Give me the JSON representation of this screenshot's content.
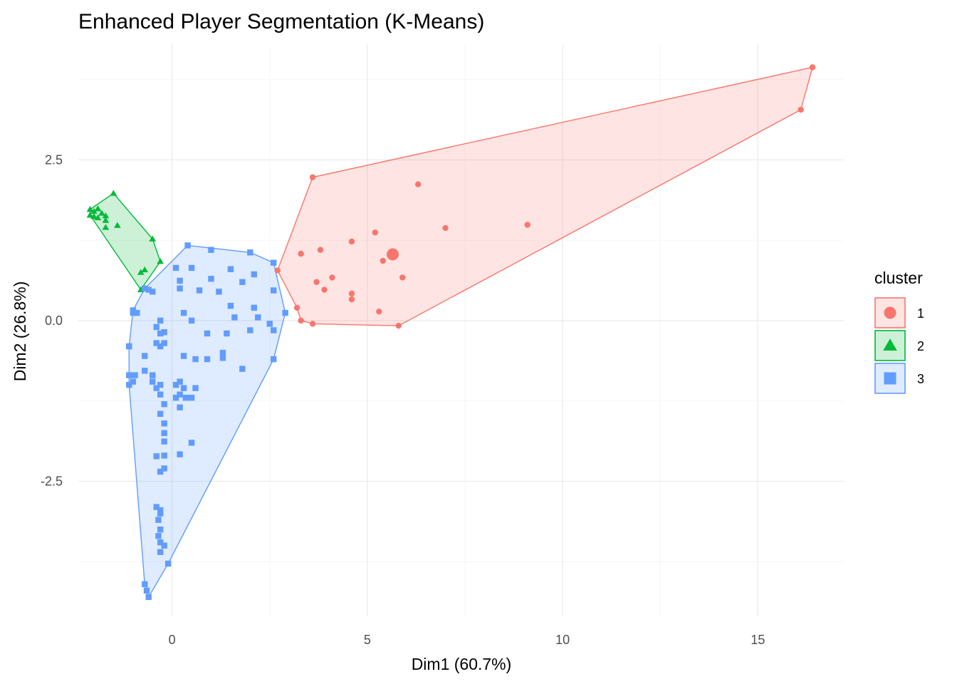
{
  "chart_data": {
    "type": "scatter",
    "title": "Enhanced Player Segmentation (K-Means)",
    "xlabel": "Dim1 (60.7%)",
    "ylabel": "Dim2 (26.8%)",
    "xlim": [
      -2.4,
      17.2
    ],
    "ylim": [
      -4.6,
      4.3
    ],
    "x_ticks": [
      0,
      5,
      10,
      15
    ],
    "x_tick_labels": [
      "0",
      "5",
      "10",
      "15"
    ],
    "y_ticks": [
      2.5,
      0.0,
      -2.5
    ],
    "y_tick_labels": [
      "2.5",
      "0.0",
      "-2.5"
    ],
    "grid": true,
    "legend": {
      "title": "cluster",
      "position": "right"
    },
    "series": [
      {
        "name": "1",
        "shape": "circle",
        "color": "#F8766D",
        "fill": "#F8766D",
        "hull": [
          [
            2.7,
            0.78
          ],
          [
            3.6,
            2.23
          ],
          [
            16.4,
            3.94
          ],
          [
            16.1,
            3.28
          ],
          [
            5.8,
            -0.08
          ],
          [
            3.6,
            -0.05
          ],
          [
            3.3,
            0.0
          ],
          [
            3.2,
            0.2
          ]
        ],
        "centroid": [
          5.65,
          1.03
        ],
        "points": [
          [
            2.7,
            0.78
          ],
          [
            3.6,
            2.23
          ],
          [
            16.4,
            3.94
          ],
          [
            16.1,
            3.28
          ],
          [
            5.8,
            -0.08
          ],
          [
            3.6,
            -0.05
          ],
          [
            3.2,
            0.2
          ],
          [
            3.3,
            0.0
          ],
          [
            6.3,
            2.12
          ],
          [
            3.3,
            1.04
          ],
          [
            3.8,
            1.1
          ],
          [
            4.6,
            1.23
          ],
          [
            5.2,
            1.37
          ],
          [
            7.0,
            1.44
          ],
          [
            9.1,
            1.49
          ],
          [
            5.4,
            0.93
          ],
          [
            5.9,
            0.67
          ],
          [
            4.1,
            0.67
          ],
          [
            3.7,
            0.6
          ],
          [
            3.9,
            0.48
          ],
          [
            4.6,
            0.42
          ],
          [
            4.6,
            0.33
          ],
          [
            5.3,
            0.14
          ]
        ]
      },
      {
        "name": "2",
        "shape": "triangle",
        "color": "#00BA38",
        "fill": "#00BA38",
        "hull": [
          [
            -2.1,
            1.73
          ],
          [
            -1.5,
            1.98
          ],
          [
            -0.5,
            1.27
          ],
          [
            -0.3,
            0.92
          ],
          [
            -0.8,
            0.48
          ],
          [
            -2.1,
            1.64
          ]
        ],
        "points": [
          [
            -2.1,
            1.73
          ],
          [
            -1.5,
            1.98
          ],
          [
            -0.5,
            1.27
          ],
          [
            -0.3,
            0.92
          ],
          [
            -0.8,
            0.48
          ],
          [
            -2.1,
            1.64
          ],
          [
            -2.0,
            1.7
          ],
          [
            -1.9,
            1.74
          ],
          [
            -1.8,
            1.67
          ],
          [
            -2.0,
            1.62
          ],
          [
            -1.7,
            1.56
          ],
          [
            -1.9,
            1.6
          ],
          [
            -1.7,
            1.45
          ],
          [
            -1.4,
            1.48
          ],
          [
            -1.7,
            1.63
          ],
          [
            -0.7,
            0.79
          ],
          [
            -0.8,
            0.75
          ]
        ]
      },
      {
        "name": "3",
        "shape": "square",
        "color": "#619CFF",
        "fill": "#619CFF",
        "hull": [
          [
            0.4,
            1.17
          ],
          [
            2.0,
            1.06
          ],
          [
            2.6,
            0.9
          ],
          [
            2.9,
            0.12
          ],
          [
            2.6,
            -0.6
          ],
          [
            -0.1,
            -3.78
          ],
          [
            -0.6,
            -4.3
          ],
          [
            -0.7,
            -4.1
          ],
          [
            -1.1,
            -1.0
          ],
          [
            -1.1,
            -0.4
          ],
          [
            -1.0,
            0.16
          ],
          [
            -0.7,
            0.5
          ]
        ],
        "points": [
          [
            0.4,
            1.17
          ],
          [
            1.0,
            1.1
          ],
          [
            2.0,
            1.06
          ],
          [
            2.6,
            0.9
          ],
          [
            2.9,
            0.12
          ],
          [
            2.6,
            -0.6
          ],
          [
            -0.1,
            -3.78
          ],
          [
            -0.6,
            -4.3
          ],
          [
            -0.7,
            -4.1
          ],
          [
            -0.65,
            -4.2
          ],
          [
            -1.0,
            0.16
          ],
          [
            -0.7,
            0.5
          ],
          [
            -1.1,
            -0.4
          ],
          [
            0.1,
            0.82
          ],
          [
            0.5,
            0.82
          ],
          [
            0.2,
            0.62
          ],
          [
            -0.6,
            0.48
          ],
          [
            0.2,
            0.5
          ],
          [
            0.7,
            0.47
          ],
          [
            -0.5,
            0.45
          ],
          [
            1.0,
            0.65
          ],
          [
            1.2,
            0.45
          ],
          [
            1.5,
            0.8
          ],
          [
            1.8,
            0.6
          ],
          [
            2.1,
            0.72
          ],
          [
            2.6,
            0.47
          ],
          [
            1.5,
            0.23
          ],
          [
            1.6,
            0.05
          ],
          [
            1.4,
            -0.2
          ],
          [
            2.1,
            0.2
          ],
          [
            2.2,
            0.05
          ],
          [
            2.0,
            -0.15
          ],
          [
            2.5,
            -0.05
          ],
          [
            2.6,
            -0.15
          ],
          [
            0.3,
            0.12
          ],
          [
            0.5,
            0.0
          ],
          [
            0.9,
            -0.2
          ],
          [
            -1.0,
            0.12
          ],
          [
            -0.9,
            0.12
          ],
          [
            -0.3,
            0.0
          ],
          [
            -0.2,
            -0.18
          ],
          [
            -0.3,
            -0.2
          ],
          [
            -0.4,
            -0.1
          ],
          [
            -0.2,
            -0.35
          ],
          [
            -0.3,
            -0.4
          ],
          [
            -0.4,
            -0.35
          ],
          [
            -1.1,
            -0.4
          ],
          [
            -0.7,
            -0.55
          ],
          [
            0.3,
            -0.55
          ],
          [
            0.6,
            -0.6
          ],
          [
            0.9,
            -0.6
          ],
          [
            1.3,
            -0.58
          ],
          [
            1.3,
            -0.5
          ],
          [
            1.8,
            -0.75
          ],
          [
            -1.1,
            -0.85
          ],
          [
            -1.0,
            -0.95
          ],
          [
            -1.1,
            -1.0
          ],
          [
            -0.95,
            -0.85
          ],
          [
            -0.7,
            -0.78
          ],
          [
            -0.5,
            -0.95
          ],
          [
            -0.4,
            -1.05
          ],
          [
            -0.5,
            -0.85
          ],
          [
            -0.3,
            -1.0
          ],
          [
            -0.3,
            -1.15
          ],
          [
            -0.2,
            -1.3
          ],
          [
            -0.3,
            -1.45
          ],
          [
            -0.2,
            -1.6
          ],
          [
            -0.2,
            -1.75
          ],
          [
            -0.2,
            -1.88
          ],
          [
            -0.2,
            -2.1
          ],
          [
            0.1,
            -1.0
          ],
          [
            0.2,
            -0.95
          ],
          [
            0.3,
            -1.05
          ],
          [
            0.2,
            -1.15
          ],
          [
            0.1,
            -1.2
          ],
          [
            0.35,
            -1.2
          ],
          [
            0.2,
            -1.35
          ],
          [
            0.6,
            -1.05
          ],
          [
            0.5,
            -1.2
          ],
          [
            -0.4,
            -2.11
          ],
          [
            -0.3,
            -2.35
          ],
          [
            -0.2,
            -2.3
          ],
          [
            0.2,
            -2.08
          ],
          [
            0.5,
            -1.9
          ],
          [
            -0.4,
            -2.9
          ],
          [
            -0.3,
            -2.95
          ],
          [
            -0.35,
            -3.1
          ],
          [
            -0.3,
            -3.25
          ],
          [
            -0.35,
            -3.35
          ],
          [
            -0.3,
            -3.45
          ],
          [
            -0.2,
            -3.5
          ],
          [
            -0.3,
            -3.6
          ],
          [
            -0.3,
            -3.0
          ]
        ]
      }
    ]
  }
}
